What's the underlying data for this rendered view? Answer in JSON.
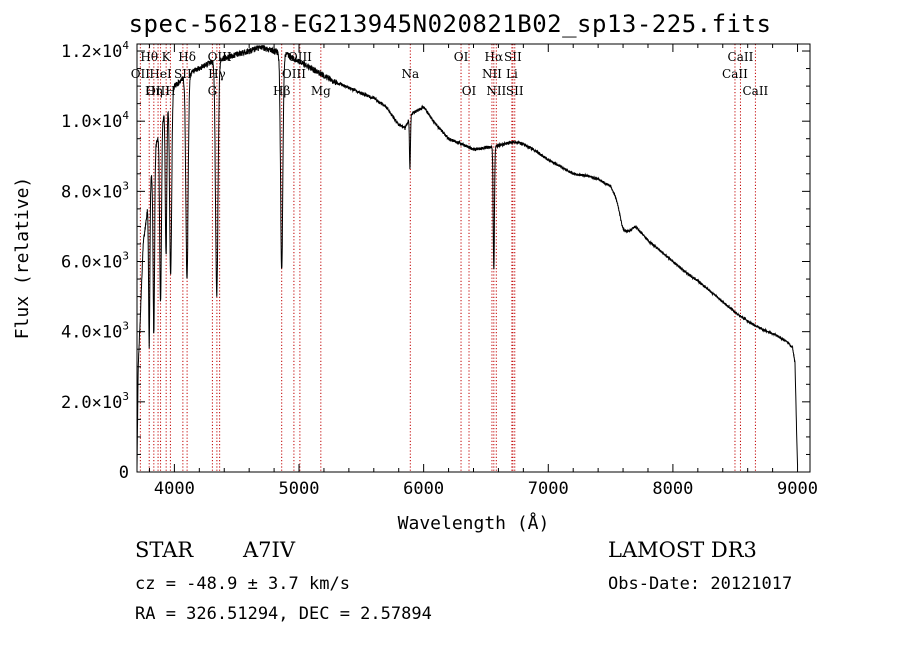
{
  "chart_data": {
    "type": "line",
    "title": "spec-56218-EG213945N020821B02_sp13-225.fits",
    "xlabel": "Wavelength (Å)",
    "ylabel": "Flux (relative)",
    "xlim": [
      3700,
      9100
    ],
    "ylim": [
      0,
      12200
    ],
    "xticks": [
      {
        "value": 4000,
        "label": "4000"
      },
      {
        "value": 5000,
        "label": "5000"
      },
      {
        "value": 6000,
        "label": "6000"
      },
      {
        "value": 7000,
        "label": "7000"
      },
      {
        "value": 8000,
        "label": "8000"
      },
      {
        "value": 9000,
        "label": "9000"
      }
    ],
    "yticks": [
      {
        "value": 0,
        "mant": "0",
        "exp": ""
      },
      {
        "value": 2000,
        "mant": "2.0×10",
        "exp": "3"
      },
      {
        "value": 4000,
        "mant": "4.0×10",
        "exp": "3"
      },
      {
        "value": 6000,
        "mant": "6.0×10",
        "exp": "3"
      },
      {
        "value": 8000,
        "mant": "8.0×10",
        "exp": "3"
      },
      {
        "value": 10000,
        "mant": "1.0×10",
        "exp": "4"
      },
      {
        "value": 12000,
        "mant": "1.2×10",
        "exp": "4"
      }
    ],
    "continuum": [
      [
        3700,
        200
      ],
      [
        3710,
        3000
      ],
      [
        3750,
        6500
      ],
      [
        3800,
        8000
      ],
      [
        3850,
        9300
      ],
      [
        3900,
        10000
      ],
      [
        3950,
        10600
      ],
      [
        4000,
        11000
      ],
      [
        4100,
        11300
      ],
      [
        4200,
        11500
      ],
      [
        4300,
        11700
      ],
      [
        4400,
        11800
      ],
      [
        4500,
        11900
      ],
      [
        4600,
        12000
      ],
      [
        4700,
        12100
      ],
      [
        4800,
        12000
      ],
      [
        4900,
        11900
      ],
      [
        5000,
        11700
      ],
      [
        5100,
        11500
      ],
      [
        5200,
        11300
      ],
      [
        5300,
        11100
      ],
      [
        5400,
        10950
      ],
      [
        5500,
        10800
      ],
      [
        5600,
        10650
      ],
      [
        5700,
        10400
      ],
      [
        5800,
        9900
      ],
      [
        5850,
        9800
      ],
      [
        5900,
        10200
      ],
      [
        6000,
        10400
      ],
      [
        6100,
        9900
      ],
      [
        6200,
        9500
      ],
      [
        6300,
        9350
      ],
      [
        6400,
        9200
      ],
      [
        6500,
        9250
      ],
      [
        6600,
        9300
      ],
      [
        6700,
        9400
      ],
      [
        6800,
        9350
      ],
      [
        6900,
        9150
      ],
      [
        7000,
        8900
      ],
      [
        7100,
        8700
      ],
      [
        7200,
        8500
      ],
      [
        7300,
        8450
      ],
      [
        7400,
        8350
      ],
      [
        7500,
        8150
      ],
      [
        7600,
        7400
      ],
      [
        7650,
        6900
      ],
      [
        7700,
        7000
      ],
      [
        7800,
        6600
      ],
      [
        7900,
        6300
      ],
      [
        8000,
        6000
      ],
      [
        8100,
        5700
      ],
      [
        8200,
        5450
      ],
      [
        8300,
        5150
      ],
      [
        8400,
        4850
      ],
      [
        8500,
        4550
      ],
      [
        8600,
        4300
      ],
      [
        8700,
        4100
      ],
      [
        8800,
        3950
      ],
      [
        8900,
        3750
      ],
      [
        8960,
        3550
      ],
      [
        8980,
        3100
      ],
      [
        8990,
        1500
      ],
      [
        9000,
        150
      ]
    ],
    "absorption_lines": [
      {
        "wave": 3798,
        "depth": 4400,
        "width": 5
      },
      {
        "wave": 3835,
        "depth": 5000,
        "width": 6
      },
      {
        "wave": 3889,
        "depth": 5000,
        "width": 7
      },
      {
        "wave": 3933,
        "depth": 4200,
        "width": 6
      },
      {
        "wave": 3970,
        "depth": 5200,
        "width": 8
      },
      {
        "wave": 4101,
        "depth": 5800,
        "width": 9
      },
      {
        "wave": 4340,
        "depth": 6700,
        "width": 10
      },
      {
        "wave": 4861,
        "depth": 6200,
        "width": 9
      },
      {
        "wave": 5890,
        "depth": 1500,
        "width": 4
      },
      {
        "wave": 6563,
        "depth": 3500,
        "width": 5
      },
      {
        "wave": 7600,
        "depth": 450,
        "width": 25
      }
    ],
    "line_markers": [
      {
        "label": "Hθ",
        "wave": 3798,
        "row": 1
      },
      {
        "label": "K",
        "wave": 3934,
        "row": 1
      },
      {
        "label": "Hδ",
        "wave": 4102,
        "row": 1
      },
      {
        "label": "OII",
        "wave": 3727,
        "row": 2
      },
      {
        "label": "HeI",
        "wave": 3889,
        "row": 2
      },
      {
        "label": "SII",
        "wave": 4068,
        "row": 2
      },
      {
        "label": "OIII",
        "wave": 3869,
        "row": 3
      },
      {
        "label": "Hη",
        "wave": 3835,
        "row": 3
      },
      {
        "label": "H",
        "wave": 3968,
        "row": 3
      },
      {
        "label": "OIII",
        "wave": 4363,
        "row": 1
      },
      {
        "label": "Hγ",
        "wave": 4341,
        "row": 2
      },
      {
        "label": "G",
        "wave": 4305,
        "row": 3
      },
      {
        "label": "OIII",
        "wave": 5007,
        "row": 1
      },
      {
        "label": "OIII",
        "wave": 4959,
        "row": 2
      },
      {
        "label": "Hβ",
        "wave": 4861,
        "row": 3
      },
      {
        "label": "Mg",
        "wave": 5175,
        "row": 3
      },
      {
        "label": "Na",
        "wave": 5893,
        "row": 2
      },
      {
        "label": "OI",
        "wave": 6300,
        "row": 1
      },
      {
        "label": "OI",
        "wave": 6364,
        "row": 3
      },
      {
        "label": "Hα",
        "wave": 6563,
        "row": 1
      },
      {
        "label": "SII",
        "wave": 6716,
        "row": 1
      },
      {
        "label": "NII",
        "wave": 6548,
        "row": 2
      },
      {
        "label": "Li",
        "wave": 6708,
        "row": 2
      },
      {
        "label": "NII",
        "wave": 6583,
        "row": 3
      },
      {
        "label": "SII",
        "wave": 6731,
        "row": 3
      },
      {
        "label": "CaII",
        "wave": 8542,
        "row": 1
      },
      {
        "label": "CaII",
        "wave": 8498,
        "row": 2
      },
      {
        "label": "CaII",
        "wave": 8662,
        "row": 3
      }
    ]
  },
  "info": {
    "class": "STAR",
    "subclass": "A7IV",
    "survey": "LAMOST DR3",
    "cz": "cz = -48.9 ± 3.7 km/s",
    "obs_date": "Obs-Date: 20121017",
    "coords": "RA = 326.51294, DEC =   2.57894"
  }
}
